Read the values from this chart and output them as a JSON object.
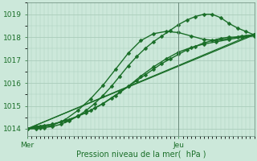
{
  "bg_color": "#cce8da",
  "grid_color": "#aaccbb",
  "line_color": "#1a6e28",
  "axis_label": "Pression niveau de la mer(  hPa )",
  "xlabel_color": "#1a6e28",
  "tick_color": "#1a6e28",
  "vline_color": "#6a8a7a",
  "xlim": [
    0,
    54
  ],
  "ylim": [
    1013.7,
    1019.5
  ],
  "yticks": [
    1014,
    1015,
    1016,
    1017,
    1018,
    1019
  ],
  "vlines_x": [
    0,
    36
  ],
  "vline_labels": [
    "Mer",
    "Jeu"
  ],
  "series": [
    {
      "x": [
        0,
        2,
        4,
        6,
        8,
        10,
        12,
        14,
        16,
        18,
        20,
        22,
        24,
        26,
        28,
        30,
        32,
        34,
        36,
        38,
        40,
        42,
        44,
        46,
        48,
        50,
        52,
        54
      ],
      "y": [
        1014.0,
        1014.1,
        1014.15,
        1014.2,
        1014.3,
        1014.4,
        1014.55,
        1014.7,
        1014.9,
        1015.1,
        1015.35,
        1015.6,
        1015.85,
        1016.1,
        1016.35,
        1016.6,
        1016.85,
        1017.05,
        1017.25,
        1017.45,
        1017.6,
        1017.75,
        1017.85,
        1017.95,
        1018.0,
        1018.0,
        1018.05,
        1018.1
      ],
      "marker": "D",
      "markersize": 2.5,
      "linewidth": 1.0,
      "linestyle": "-"
    },
    {
      "x": [
        0,
        3,
        6,
        9,
        12,
        15,
        18,
        21,
        24,
        27,
        30,
        33,
        36,
        39,
        42,
        45,
        48,
        51,
        54
      ],
      "y": [
        1014.0,
        1014.1,
        1014.2,
        1014.35,
        1014.55,
        1014.8,
        1015.1,
        1015.45,
        1015.85,
        1016.3,
        1016.7,
        1017.05,
        1017.35,
        1017.55,
        1017.7,
        1017.8,
        1017.9,
        1018.0,
        1018.05
      ],
      "marker": "D",
      "markersize": 2.5,
      "linewidth": 1.0,
      "linestyle": "-"
    },
    {
      "x": [
        0,
        3,
        6,
        9,
        12,
        15,
        18,
        21,
        24,
        27,
        30,
        33,
        36,
        39,
        42,
        45,
        48,
        51,
        54
      ],
      "y": [
        1014.0,
        1014.05,
        1014.15,
        1014.4,
        1014.8,
        1015.3,
        1015.9,
        1016.6,
        1017.3,
        1017.85,
        1018.15,
        1018.25,
        1018.2,
        1018.05,
        1017.9,
        1017.85,
        1017.95,
        1018.05,
        1018.1
      ],
      "marker": "D",
      "markersize": 2.5,
      "linewidth": 1.0,
      "linestyle": "-"
    },
    {
      "x": [
        0,
        2,
        4,
        6,
        8,
        10,
        12,
        14,
        16,
        18,
        20,
        22,
        24,
        26,
        28,
        30,
        32,
        34,
        36,
        38,
        40,
        42,
        44,
        46,
        48,
        50,
        52,
        54
      ],
      "y": [
        1014.0,
        1014.0,
        1014.05,
        1014.1,
        1014.2,
        1014.35,
        1014.55,
        1014.8,
        1015.1,
        1015.45,
        1015.85,
        1016.3,
        1016.75,
        1017.15,
        1017.5,
        1017.8,
        1018.05,
        1018.3,
        1018.55,
        1018.75,
        1018.9,
        1019.0,
        1019.0,
        1018.85,
        1018.6,
        1018.4,
        1018.25,
        1018.1
      ],
      "marker": "D",
      "markersize": 2.5,
      "linewidth": 1.0,
      "linestyle": "-"
    },
    {
      "x": [
        0,
        54
      ],
      "y": [
        1014.0,
        1018.1
      ],
      "marker": null,
      "markersize": 0,
      "linewidth": 0.9,
      "linestyle": "-"
    },
    {
      "x": [
        0,
        54
      ],
      "y": [
        1014.0,
        1018.15
      ],
      "marker": null,
      "markersize": 0,
      "linewidth": 0.9,
      "linestyle": "-"
    }
  ]
}
